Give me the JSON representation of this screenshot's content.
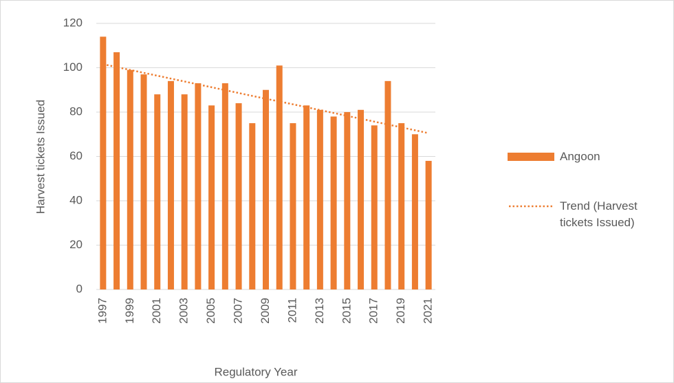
{
  "chart_data": {
    "type": "bar",
    "x_label": "Regulatory Year",
    "y_label": "Harvest tickets Issued",
    "categories": [
      "1997",
      null,
      "1999",
      null,
      "2001",
      null,
      "2003",
      null,
      "2005",
      null,
      "2007",
      null,
      "2009",
      null,
      "2011",
      null,
      "2013",
      null,
      "2015",
      null,
      "2017",
      null,
      "2019",
      null,
      "2021"
    ],
    "series": [
      {
        "name": "Angoon",
        "type": "bar",
        "color": "#ed7d31",
        "values": [
          114,
          107,
          99,
          97,
          88,
          94,
          88,
          93,
          83,
          93,
          84,
          75,
          90,
          101,
          75,
          83,
          81,
          78,
          80,
          81,
          74,
          94,
          75,
          70,
          58
        ]
      },
      {
        "name": "Trend (Harvest tickets Issued)",
        "type": "line",
        "style": "dotted",
        "color": "#ed7d31",
        "values": [
          101.6,
          100.3,
          99.0,
          97.7,
          96.4,
          95.1,
          93.8,
          92.5,
          91.2,
          89.9,
          88.6,
          87.3,
          86.0,
          84.8,
          83.5,
          82.2,
          80.9,
          79.6,
          78.3,
          77.0,
          75.7,
          74.4,
          73.1,
          71.8,
          70.5
        ]
      }
    ],
    "ylim": [
      0,
      120
    ],
    "yticks": [
      0,
      20,
      40,
      60,
      80,
      100,
      120
    ],
    "grid": true,
    "legend": "right"
  }
}
